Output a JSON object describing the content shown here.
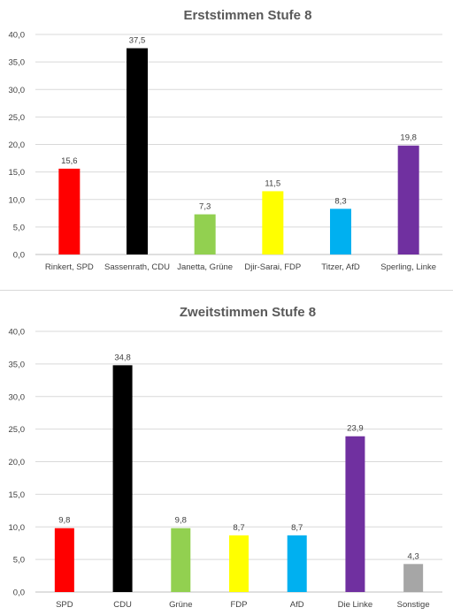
{
  "chart_data": [
    {
      "type": "bar",
      "title": "Erststimmen Stufe 8",
      "categories": [
        "Rinkert, SPD",
        "Sassenrath, CDU",
        "Janetta, Grüne",
        "Djir-Sarai, FDP",
        "Titzer, AfD",
        "Sperling, Linke"
      ],
      "values": [
        15.6,
        37.5,
        7.3,
        11.5,
        8.3,
        19.8
      ],
      "value_labels": [
        "15,6",
        "37,5",
        "7,3",
        "11,5",
        "8,3",
        "19,8"
      ],
      "colors": [
        "#ff0000",
        "#000000",
        "#92d050",
        "#ffff00",
        "#00b0f0",
        "#7030a0"
      ],
      "yticks": [
        "0,0",
        "5,0",
        "10,0",
        "15,0",
        "20,0",
        "25,0",
        "30,0",
        "35,0",
        "40,0"
      ],
      "ylim": [
        0,
        40
      ],
      "grid": true,
      "legend": "none"
    },
    {
      "type": "bar",
      "title": "Zweitstimmen Stufe 8",
      "categories": [
        "SPD",
        "CDU",
        "Grüne",
        "FDP",
        "AfD",
        "Die Linke",
        "Sonstige"
      ],
      "values": [
        9.8,
        34.8,
        9.8,
        8.7,
        8.7,
        23.9,
        4.3
      ],
      "value_labels": [
        "9,8",
        "34,8",
        "9,8",
        "8,7",
        "8,7",
        "23,9",
        "4,3"
      ],
      "colors": [
        "#ff0000",
        "#000000",
        "#92d050",
        "#ffff00",
        "#00b0f0",
        "#7030a0",
        "#a6a6a6"
      ],
      "yticks": [
        "0,0",
        "5,0",
        "10,0",
        "15,0",
        "20,0",
        "25,0",
        "30,0",
        "35,0",
        "40,0"
      ],
      "ylim": [
        0,
        40
      ],
      "grid": true,
      "legend": "none"
    }
  ]
}
